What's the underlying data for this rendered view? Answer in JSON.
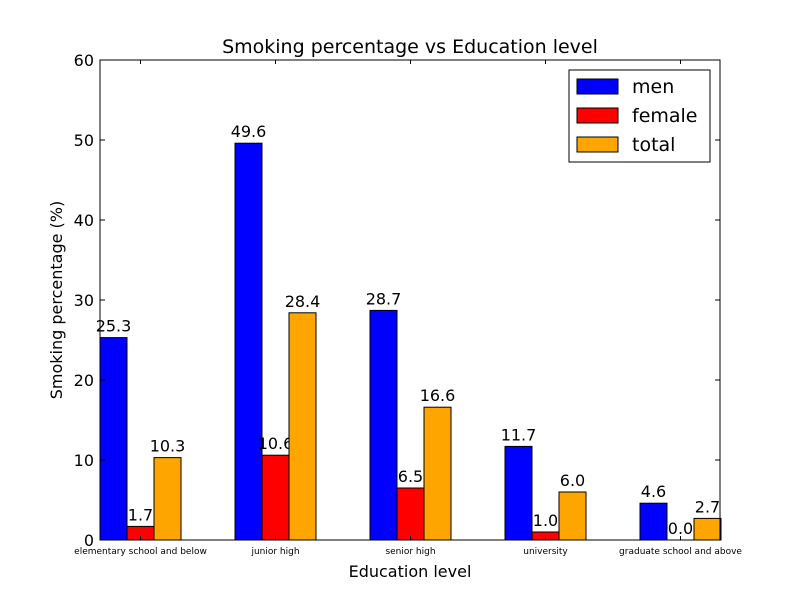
{
  "chart_data": {
    "type": "bar",
    "title": "Smoking percentage vs Education level",
    "xlabel": "Education level",
    "ylabel": "Smoking percentage (%)",
    "ylim": [
      0,
      60
    ],
    "yticks": [
      0,
      10,
      20,
      30,
      40,
      50,
      60
    ],
    "categories": [
      "elementary school and below",
      "junior high",
      "senior high",
      "university",
      "graduate school and above"
    ],
    "series": [
      {
        "name": "men",
        "color": "#0000ff",
        "values": [
          25.3,
          49.6,
          28.7,
          11.7,
          4.6
        ],
        "labels": [
          "25.3",
          "49.6",
          "28.7",
          "11.7",
          "4.6"
        ]
      },
      {
        "name": "female",
        "color": "#ff0000",
        "values": [
          1.7,
          10.6,
          6.5,
          1.0,
          0.0
        ],
        "labels": [
          "1.7",
          "10.6",
          "6.5",
          "1.0",
          "0.0"
        ]
      },
      {
        "name": "total",
        "color": "#ffa500",
        "values": [
          10.3,
          28.4,
          16.6,
          6.0,
          2.7
        ],
        "labels": [
          "10.3",
          "28.4",
          "16.6",
          "6.0",
          "2.7"
        ]
      }
    ],
    "legend_position": "top-right",
    "grid": false
  }
}
